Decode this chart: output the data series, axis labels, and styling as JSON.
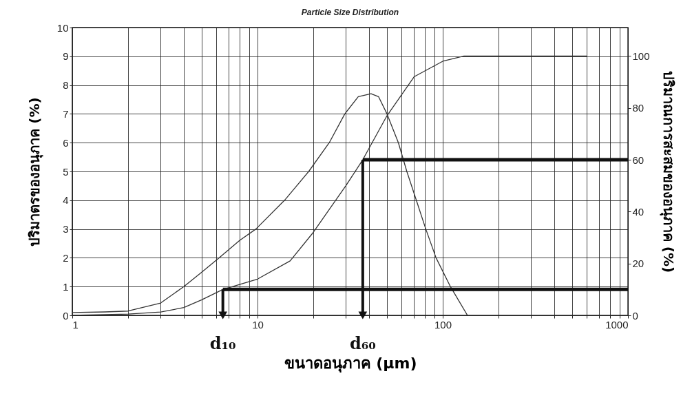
{
  "chart_data": {
    "type": "line",
    "title": "Particle Size Distribution",
    "xlabel": "ขนาดอนุภาค (µm)",
    "ylabel": "ปริมาตรของอนุภาค (%)",
    "y2label": "ปริมาณการสะสมของอนุภาค (%)",
    "log": "x",
    "grid": true,
    "xlim": [
      1,
      1000
    ],
    "xticks": [
      1,
      {
        "value": 2,
        "label": null
      },
      {
        "value": 3,
        "label": null
      },
      {
        "value": 4,
        "label": null
      },
      {
        "value": 5,
        "label": null
      },
      {
        "value": 6,
        "label": null
      },
      {
        "value": 7,
        "label": null
      },
      {
        "value": 8,
        "label": null
      },
      {
        "value": 9,
        "label": null
      },
      10,
      {
        "value": 20,
        "label": null
      },
      {
        "value": 30,
        "label": null
      },
      {
        "value": 40,
        "label": null
      },
      {
        "value": 50,
        "label": null
      },
      {
        "value": 60,
        "label": null
      },
      {
        "value": 70,
        "label": null
      },
      {
        "value": 80,
        "label": null
      },
      {
        "value": 90,
        "label": null
      },
      100,
      {
        "value": 200,
        "label": null
      },
      {
        "value": 300,
        "label": null
      },
      {
        "value": 400,
        "label": null
      },
      {
        "value": 500,
        "label": null
      },
      {
        "value": 600,
        "label": null
      },
      {
        "value": 700,
        "label": null
      },
      {
        "value": 800,
        "label": null
      },
      {
        "value": 900,
        "label": null
      },
      1000
    ],
    "ylim": [
      0,
      10
    ],
    "yticks": [
      0,
      1,
      2,
      3,
      4,
      5,
      6,
      7,
      8,
      9,
      10
    ],
    "y2lim": [
      0,
      111
    ],
    "y2ticks": [
      0,
      20,
      40,
      60,
      80,
      100
    ],
    "series": [
      {
        "color": "#333333",
        "x": [
          1,
          1.5,
          2,
          3,
          4,
          5,
          6.2,
          8,
          9.8,
          14,
          18.9,
          24.4,
          29.6,
          35,
          41,
          45,
          50,
          57.6,
          64,
          72,
          81,
          92,
          110,
          136
        ],
        "values": [
          0.1,
          0.12,
          0.15,
          0.43,
          1,
          1.5,
          2,
          2.6,
          3,
          4,
          5,
          6,
          7,
          7.6,
          7.7,
          7.6,
          7,
          6,
          5,
          4,
          3,
          2,
          1,
          0
        ]
      },
      {
        "color": "#333333",
        "axis": "y2",
        "x": [
          1,
          2,
          3,
          4,
          5,
          6.5,
          10,
          15,
          20,
          30,
          37,
          50,
          70,
          100,
          130,
          600
        ],
        "values": [
          0,
          0.5,
          1.3,
          3,
          6,
          10,
          14,
          21,
          32,
          50,
          60,
          77,
          92,
          98,
          100,
          100
        ]
      }
    ],
    "ref_lines": [
      {
        "axis": "x",
        "value": 6.5,
        "label": "d₁₀",
        "color": "#111111"
      },
      {
        "axis": "x",
        "value": 37,
        "label": "d₆₀",
        "color": "#111111"
      },
      {
        "axis": "y2",
        "value": 10,
        "color": "#111111"
      },
      {
        "axis": "y2",
        "value": 60,
        "color": "#111111"
      }
    ]
  }
}
